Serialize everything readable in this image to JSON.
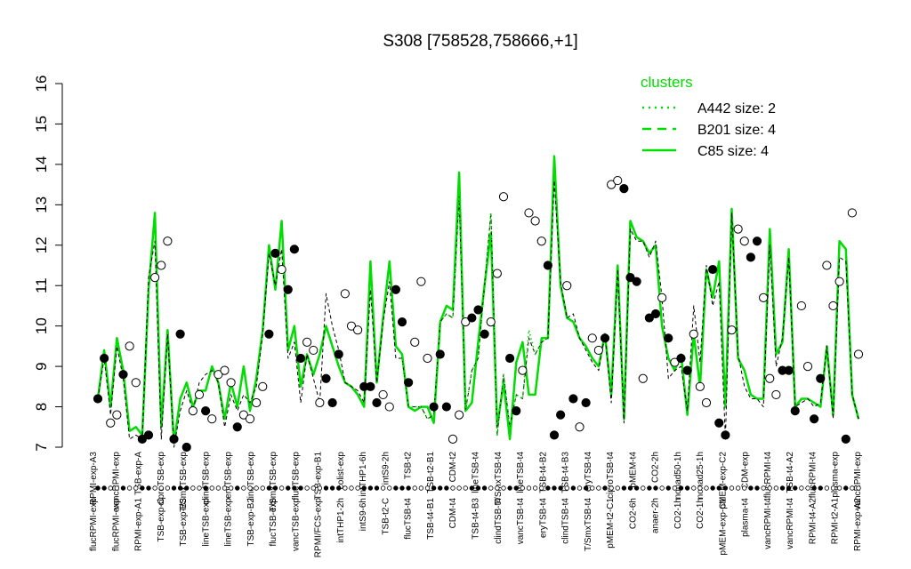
{
  "chart_data": {
    "type": "line",
    "title": "S308 [758528,758666,+1]",
    "ylim": [
      7,
      16
    ],
    "yticks": [
      7,
      8,
      9,
      10,
      11,
      12,
      13,
      14,
      15,
      16
    ],
    "legend": {
      "placement": "top-right",
      "title": "clusters",
      "color": "#00dd00",
      "entries": [
        {
          "label": "A442 size: 2",
          "style": "dotted"
        },
        {
          "label": "B201 size: 4",
          "style": "dashed"
        },
        {
          "label": "C85 size: 4",
          "style": "solid"
        }
      ]
    },
    "upper_labels": [
      "RPMI-exp-A3",
      "vancRPMI-exp",
      "TSB-exp-A",
      "ciproTSB-exp",
      "T/SmxTSB-exp",
      "clindTSB-exp",
      "eryTSB-exp",
      "lineTSB-exp",
      "T/SmxTSB-exp",
      "flucTSB-exp",
      "TSB-exp-B1",
      "colist-exp",
      "intTHP1-6h",
      "intS9-2h",
      "TSB-t2",
      "TSB-t2-B1",
      "CDM-t2",
      "lineTSB-t4",
      "T/SmxTSB-t4",
      "lineTSB-t4",
      "TSB-t4-B2",
      "TSB-t4-B3",
      "eryTSB-t4",
      "ciproTSB-t4",
      "pMEM-t4",
      "CO2-2h",
      "nonad50-1h",
      "nonad25-1h",
      "pMEM-exp-C2",
      "CDM-exp",
      "flucRPMI-t4",
      "TSB-t4-A2",
      "flucRPMI-t4",
      "plasma-exp",
      "vancRPMI-exp"
    ],
    "lower_labels": [
      "flucRPMI-exp",
      "flucRPMI-exp",
      "RPMI-exp-A1",
      "TSB-exp-C",
      "TSB-exp-B3",
      "lineTSB-exp",
      "lineTSB-exp",
      "TSB-exp-B2",
      "flucTSB-exp",
      "vancTSB-exp",
      "RPMI/FCS-exp",
      "intTHP1-2h",
      "intS9-6h",
      "TSB-t2-C",
      "flucTSB-t4",
      "TSB-t4-B1",
      "CDM-t4",
      "TSB-t4-B3",
      "clindTSB-t4",
      "vancTSB-t4",
      "eryTSB-t4",
      "clindTSB-t4",
      "T/SmxTSB-t4",
      "pMEM-t2-C1",
      "CO2-6h",
      "anaer-2h",
      "CO2-1h",
      "CO2-1h",
      "pMEM-exp-C1",
      "plasma-t4",
      "vancRPMI-t4",
      "vancRPMI-t4",
      "RPMI-t4-A2",
      "RPMI-t2-A1",
      "RPMI-exp-A2"
    ],
    "series": [
      {
        "style": "solid",
        "color": "#00dd00",
        "x": [
          0,
          1,
          2,
          3,
          4,
          5,
          6,
          7,
          8,
          9,
          10,
          11,
          12,
          13,
          14,
          15,
          16,
          17,
          18,
          19,
          20,
          21,
          22,
          23,
          24,
          25,
          26,
          27,
          28,
          29,
          30,
          31,
          32,
          33,
          34,
          35,
          36,
          37,
          38,
          39,
          40,
          41,
          42,
          43,
          44,
          45,
          46,
          47,
          48,
          49,
          50,
          51,
          52,
          53,
          54,
          55,
          56,
          57,
          58,
          59,
          60,
          61,
          62,
          63,
          64,
          65,
          66,
          67,
          68,
          69,
          70,
          71,
          72,
          73,
          74,
          75,
          76,
          77,
          78,
          79,
          80,
          81,
          82,
          83,
          84,
          85,
          86,
          87,
          88,
          89,
          90,
          91,
          92,
          93,
          94,
          95,
          96,
          97,
          98,
          99,
          100,
          101,
          102,
          103,
          104,
          105,
          106,
          107,
          108,
          109,
          110,
          111,
          112,
          113,
          114,
          115,
          116,
          117,
          118,
          119,
          120
        ],
        "y": [
          8.2,
          9.4,
          8.0,
          9.7,
          8.9,
          7.4,
          7.5,
          7.3,
          10.9,
          12.8,
          7.5,
          9.9,
          7.1,
          8.2,
          8.6,
          8.0,
          8.4,
          8.4,
          9.0,
          8.6,
          7.7,
          8.6,
          8.0,
          9.0,
          7.9,
          8.7,
          9.9,
          12.0,
          10.9,
          12.6,
          9.4,
          10.0,
          8.5,
          9.3,
          8.8,
          9.3,
          10.0,
          9.5,
          9.0,
          8.6,
          8.5,
          8.3,
          8.0,
          11.6,
          8.6,
          10.2,
          11.6,
          9.5,
          9.3,
          8.0,
          7.9,
          8.0,
          8.0,
          7.6,
          10.1,
          10.5,
          10.4,
          13.8,
          7.9,
          8.1,
          9.6,
          11.0,
          12.3,
          7.5,
          8.6,
          7.2,
          9.1,
          9.6,
          8.3,
          8.3,
          9.7,
          9.7,
          14.2,
          11.0,
          10.2,
          10.1,
          9.7,
          9.5,
          9.2,
          9.0,
          9.8,
          8.3,
          11.5,
          7.7,
          12.6,
          12.2,
          12.1,
          11.8,
          12.0,
          10.0,
          9.2,
          8.9,
          9.3,
          7.8,
          9.8,
          8.5,
          11.4,
          10.7,
          11.6,
          8.0,
          12.9,
          9.2,
          8.9,
          8.3,
          8.2,
          8.2,
          12.4,
          9.3,
          9.6,
          11.9,
          8.0,
          8.2,
          8.2,
          8.1,
          8.0,
          9.5,
          7.8,
          12.1,
          11.9,
          8.3,
          7.7
        ]
      },
      {
        "style": "dashed",
        "color": "#000000",
        "x": [
          0,
          1,
          2,
          3,
          4,
          5,
          6,
          7,
          8,
          9,
          10,
          11,
          12,
          13,
          14,
          15,
          16,
          17,
          18,
          19,
          20,
          21,
          22,
          23,
          24,
          25,
          26,
          27,
          28,
          29,
          30,
          31,
          32,
          33,
          34,
          35,
          36,
          37,
          38,
          39,
          40,
          41,
          42,
          43,
          44,
          45,
          46,
          47,
          48,
          49,
          50,
          51,
          52,
          53,
          54,
          55,
          56,
          57,
          58,
          59,
          60,
          61,
          62,
          63,
          64,
          65,
          66,
          67,
          68,
          69,
          70,
          71,
          72,
          73,
          74,
          75,
          76,
          77,
          78,
          79,
          80,
          81,
          82,
          83,
          84,
          85,
          86,
          87,
          88,
          89,
          90,
          91,
          92,
          93,
          94,
          95,
          96,
          97,
          98,
          99,
          100,
          101,
          102,
          103,
          104,
          105,
          106,
          107,
          108,
          109,
          110,
          111,
          112,
          113,
          114,
          115,
          116,
          117,
          118,
          119,
          120
        ],
        "y": [
          8.2,
          9.2,
          7.8,
          9.5,
          8.7,
          7.2,
          7.3,
          7.2,
          11.2,
          12.1,
          7.2,
          9.8,
          7.0,
          7.9,
          8.4,
          7.9,
          8.6,
          8.8,
          8.9,
          8.6,
          7.5,
          8.3,
          7.9,
          8.3,
          8.1,
          8.5,
          9.8,
          11.8,
          11.0,
          11.9,
          9.2,
          9.6,
          8.1,
          9.3,
          8.7,
          8.1,
          10.8,
          10.0,
          9.4,
          8.6,
          8.5,
          8.4,
          8.1,
          10.9,
          8.6,
          10.1,
          11.1,
          9.2,
          9.2,
          8.0,
          8.0,
          8.0,
          7.7,
          7.8,
          10.1,
          10.3,
          10.2,
          13.2,
          7.9,
          8.9,
          9.2,
          11.0,
          12.8,
          7.3,
          8.8,
          7.5,
          8.3,
          8.2,
          9.7,
          9.3,
          9.6,
          9.7,
          13.6,
          11.1,
          10.2,
          10.3,
          9.7,
          9.4,
          9.1,
          8.9,
          9.8,
          8.1,
          11.4,
          7.6,
          12.4,
          12.1,
          12.1,
          11.7,
          12.1,
          10.7,
          8.7,
          8.9,
          9.0,
          7.9,
          10.5,
          9.1,
          11.5,
          10.5,
          11.1,
          7.2,
          12.8,
          9.3,
          8.5,
          8.2,
          8.2,
          8.0,
          12.0,
          9.0,
          9.7,
          11.7,
          8.0,
          8.1,
          8.2,
          8.0,
          8.1,
          9.5,
          7.7,
          11.7,
          11.6,
          8.3,
          7.7
        ]
      },
      {
        "style": "dotted",
        "color": "#00dd00",
        "x": [
          48,
          49,
          50,
          51,
          52,
          53,
          54,
          55,
          56,
          57,
          58,
          59,
          60,
          61,
          62,
          63,
          64,
          65,
          66,
          67,
          68,
          69,
          70,
          71
        ],
        "y": [
          9.2,
          8.0,
          8.0,
          8.0,
          7.7,
          7.8,
          10.1,
          10.3,
          10.2,
          13.2,
          7.9,
          8.9,
          9.2,
          11.0,
          12.8,
          7.3,
          8.8,
          7.5,
          8.3,
          8.2,
          9.9,
          9.3,
          9.6,
          9.7
        ]
      }
    ],
    "points": [
      {
        "x": 0,
        "y": 8.2,
        "filled": true
      },
      {
        "x": 1,
        "y": 9.2,
        "filled": true
      },
      {
        "x": 2,
        "y": 7.6,
        "filled": false
      },
      {
        "x": 3,
        "y": 7.8,
        "filled": false
      },
      {
        "x": 4,
        "y": 8.8,
        "filled": true
      },
      {
        "x": 5,
        "y": 9.5,
        "filled": false
      },
      {
        "x": 6,
        "y": 8.6,
        "filled": false
      },
      {
        "x": 7,
        "y": 7.2,
        "filled": true
      },
      {
        "x": 8,
        "y": 7.3,
        "filled": true
      },
      {
        "x": 9,
        "y": 11.2,
        "filled": false
      },
      {
        "x": 10,
        "y": 11.5,
        "filled": false
      },
      {
        "x": 11,
        "y": 12.1,
        "filled": false
      },
      {
        "x": 12,
        "y": 7.2,
        "filled": true
      },
      {
        "x": 13,
        "y": 9.8,
        "filled": true
      },
      {
        "x": 14,
        "y": 7.0,
        "filled": true
      },
      {
        "x": 15,
        "y": 7.9,
        "filled": false
      },
      {
        "x": 16,
        "y": 8.3,
        "filled": false
      },
      {
        "x": 17,
        "y": 7.9,
        "filled": true
      },
      {
        "x": 18,
        "y": 7.7,
        "filled": false
      },
      {
        "x": 19,
        "y": 8.8,
        "filled": false
      },
      {
        "x": 20,
        "y": 8.9,
        "filled": false
      },
      {
        "x": 21,
        "y": 8.6,
        "filled": false
      },
      {
        "x": 22,
        "y": 7.5,
        "filled": true
      },
      {
        "x": 23,
        "y": 7.8,
        "filled": false
      },
      {
        "x": 24,
        "y": 7.7,
        "filled": false
      },
      {
        "x": 25,
        "y": 8.1,
        "filled": false
      },
      {
        "x": 26,
        "y": 8.5,
        "filled": false
      },
      {
        "x": 27,
        "y": 9.8,
        "filled": true
      },
      {
        "x": 28,
        "y": 11.8,
        "filled": true
      },
      {
        "x": 29,
        "y": 11.4,
        "filled": false
      },
      {
        "x": 30,
        "y": 10.9,
        "filled": true
      },
      {
        "x": 31,
        "y": 11.9,
        "filled": true
      },
      {
        "x": 32,
        "y": 9.2,
        "filled": true
      },
      {
        "x": 33,
        "y": 9.6,
        "filled": false
      },
      {
        "x": 34,
        "y": 9.4,
        "filled": false
      },
      {
        "x": 35,
        "y": 8.1,
        "filled": false
      },
      {
        "x": 36,
        "y": 8.7,
        "filled": true
      },
      {
        "x": 37,
        "y": 8.1,
        "filled": true
      },
      {
        "x": 38,
        "y": 9.3,
        "filled": true
      },
      {
        "x": 39,
        "y": 10.8,
        "filled": false
      },
      {
        "x": 40,
        "y": 10.0,
        "filled": false
      },
      {
        "x": 41,
        "y": 9.9,
        "filled": false
      },
      {
        "x": 42,
        "y": 8.5,
        "filled": true
      },
      {
        "x": 43,
        "y": 8.5,
        "filled": true
      },
      {
        "x": 44,
        "y": 8.1,
        "filled": true
      },
      {
        "x": 45,
        "y": 8.3,
        "filled": false
      },
      {
        "x": 46,
        "y": 8.0,
        "filled": false
      },
      {
        "x": 47,
        "y": 10.9,
        "filled": true
      },
      {
        "x": 48,
        "y": 10.1,
        "filled": true
      },
      {
        "x": 49,
        "y": 8.6,
        "filled": true
      },
      {
        "x": 50,
        "y": 9.6,
        "filled": false
      },
      {
        "x": 51,
        "y": 11.1,
        "filled": false
      },
      {
        "x": 52,
        "y": 9.2,
        "filled": false
      },
      {
        "x": 53,
        "y": 8.0,
        "filled": true
      },
      {
        "x": 54,
        "y": 9.3,
        "filled": true
      },
      {
        "x": 55,
        "y": 8.0,
        "filled": true
      },
      {
        "x": 56,
        "y": 7.2,
        "filled": false
      },
      {
        "x": 57,
        "y": 7.8,
        "filled": false
      },
      {
        "x": 58,
        "y": 10.1,
        "filled": false
      },
      {
        "x": 59,
        "y": 10.2,
        "filled": true
      },
      {
        "x": 60,
        "y": 10.4,
        "filled": true
      },
      {
        "x": 61,
        "y": 9.8,
        "filled": true
      },
      {
        "x": 62,
        "y": 10.1,
        "filled": false
      },
      {
        "x": 63,
        "y": 11.3,
        "filled": false
      },
      {
        "x": 64,
        "y": 13.2,
        "filled": false
      },
      {
        "x": 65,
        "y": 9.2,
        "filled": true
      },
      {
        "x": 66,
        "y": 7.9,
        "filled": true
      },
      {
        "x": 67,
        "y": 8.9,
        "filled": false
      },
      {
        "x": 68,
        "y": 12.8,
        "filled": false
      },
      {
        "x": 69,
        "y": 12.6,
        "filled": false
      },
      {
        "x": 70,
        "y": 12.1,
        "filled": false
      },
      {
        "x": 71,
        "y": 11.5,
        "filled": true
      },
      {
        "x": 72,
        "y": 7.3,
        "filled": true
      },
      {
        "x": 73,
        "y": 7.8,
        "filled": true
      },
      {
        "x": 74,
        "y": 11.0,
        "filled": false
      },
      {
        "x": 75,
        "y": 8.2,
        "filled": true
      },
      {
        "x": 76,
        "y": 7.5,
        "filled": false
      },
      {
        "x": 77,
        "y": 8.1,
        "filled": true
      },
      {
        "x": 78,
        "y": 9.7,
        "filled": false
      },
      {
        "x": 79,
        "y": 9.4,
        "filled": false
      },
      {
        "x": 80,
        "y": 9.7,
        "filled": true
      },
      {
        "x": 81,
        "y": 13.5,
        "filled": false
      },
      {
        "x": 82,
        "y": 13.6,
        "filled": false
      },
      {
        "x": 83,
        "y": 13.4,
        "filled": true
      },
      {
        "x": 84,
        "y": 11.2,
        "filled": true
      },
      {
        "x": 85,
        "y": 11.1,
        "filled": true
      },
      {
        "x": 86,
        "y": 8.7,
        "filled": false
      },
      {
        "x": 87,
        "y": 10.2,
        "filled": true
      },
      {
        "x": 88,
        "y": 10.3,
        "filled": true
      },
      {
        "x": 89,
        "y": 10.7,
        "filled": false
      },
      {
        "x": 90,
        "y": 9.7,
        "filled": true
      },
      {
        "x": 91,
        "y": 9.1,
        "filled": false
      },
      {
        "x": 92,
        "y": 9.2,
        "filled": true
      },
      {
        "x": 93,
        "y": 8.9,
        "filled": true
      },
      {
        "x": 94,
        "y": 9.8,
        "filled": false
      },
      {
        "x": 95,
        "y": 8.5,
        "filled": false
      },
      {
        "x": 96,
        "y": 8.1,
        "filled": false
      },
      {
        "x": 97,
        "y": 11.4,
        "filled": true
      },
      {
        "x": 98,
        "y": 7.6,
        "filled": true
      },
      {
        "x": 99,
        "y": 7.3,
        "filled": true
      },
      {
        "x": 100,
        "y": 9.9,
        "filled": false
      },
      {
        "x": 101,
        "y": 12.4,
        "filled": false
      },
      {
        "x": 102,
        "y": 12.1,
        "filled": false
      },
      {
        "x": 103,
        "y": 11.7,
        "filled": true
      },
      {
        "x": 104,
        "y": 12.1,
        "filled": true
      },
      {
        "x": 105,
        "y": 10.7,
        "filled": false
      },
      {
        "x": 106,
        "y": 8.7,
        "filled": false
      },
      {
        "x": 107,
        "y": 8.3,
        "filled": false
      },
      {
        "x": 108,
        "y": 8.9,
        "filled": true
      },
      {
        "x": 109,
        "y": 8.9,
        "filled": true
      },
      {
        "x": 110,
        "y": 7.9,
        "filled": true
      },
      {
        "x": 111,
        "y": 10.5,
        "filled": false
      },
      {
        "x": 112,
        "y": 9.0,
        "filled": false
      },
      {
        "x": 113,
        "y": 7.7,
        "filled": true
      },
      {
        "x": 114,
        "y": 8.7,
        "filled": true
      },
      {
        "x": 115,
        "y": 11.5,
        "filled": false
      },
      {
        "x": 116,
        "y": 10.5,
        "filled": false
      },
      {
        "x": 117,
        "y": 11.1,
        "filled": false
      },
      {
        "x": 118,
        "y": 7.2,
        "filled": true
      },
      {
        "x": 119,
        "y": 12.8,
        "filled": false
      },
      {
        "x": 120,
        "y": 9.3,
        "filled": false
      }
    ]
  }
}
